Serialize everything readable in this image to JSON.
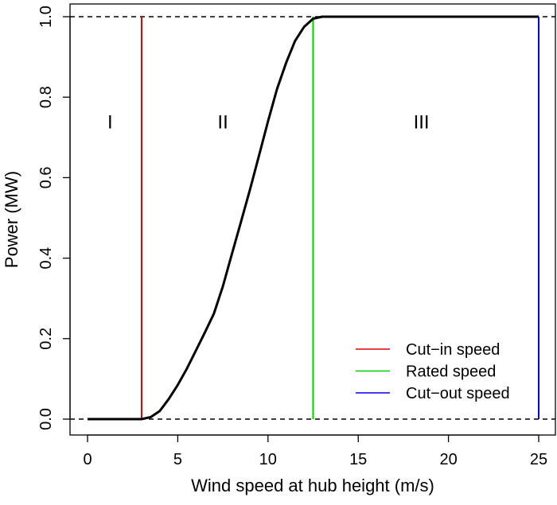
{
  "chart_data": {
    "type": "line",
    "title": "",
    "xlabel": "Wind speed at hub height (m/s)",
    "ylabel": "Power (MW)",
    "xlim": [
      -1,
      26
    ],
    "ylim": [
      -0.03,
      1.03
    ],
    "xticks": [
      0,
      5,
      10,
      15,
      20,
      25
    ],
    "xtick_labels": [
      "0",
      "5",
      "10",
      "15",
      "20",
      "25"
    ],
    "yticks": [
      0,
      0.2,
      0.4,
      0.6,
      0.8,
      1.0
    ],
    "ytick_labels": [
      "0.0",
      "0.2",
      "0.4",
      "0.6",
      "0.8",
      "1.0"
    ],
    "grid": false,
    "power_curve": {
      "color": "#000000",
      "x": [
        0,
        3,
        3.5,
        4,
        4.5,
        5,
        5.5,
        6,
        6.5,
        7,
        7.5,
        8,
        8.5,
        9,
        9.5,
        10,
        10.5,
        11,
        11.5,
        12,
        12.5,
        13,
        25
      ],
      "y": [
        0,
        0,
        0.005,
        0.02,
        0.05,
        0.085,
        0.125,
        0.17,
        0.215,
        0.262,
        0.33,
        0.41,
        0.49,
        0.57,
        0.655,
        0.74,
        0.82,
        0.885,
        0.94,
        0.975,
        0.995,
        1.0,
        1.0
      ]
    },
    "reference_lines": {
      "horizontal_dashed": [
        0,
        1
      ]
    },
    "vertical_lines": [
      {
        "name": "Cut−in speed",
        "x": 3,
        "color": "#dd0000"
      },
      {
        "name": "Rated speed",
        "x": 12.5,
        "color": "#00cc00"
      },
      {
        "name": "Cut−out speed",
        "x": 25,
        "color": "#0000ee"
      }
    ],
    "region_labels": [
      {
        "text": "I",
        "x": 1.25,
        "y": 0.74
      },
      {
        "text": "II",
        "x": 7.5,
        "y": 0.74
      },
      {
        "text": "III",
        "x": 18.5,
        "y": 0.74
      }
    ],
    "legend": {
      "placement": "bottom-right",
      "boxed": false
    }
  }
}
